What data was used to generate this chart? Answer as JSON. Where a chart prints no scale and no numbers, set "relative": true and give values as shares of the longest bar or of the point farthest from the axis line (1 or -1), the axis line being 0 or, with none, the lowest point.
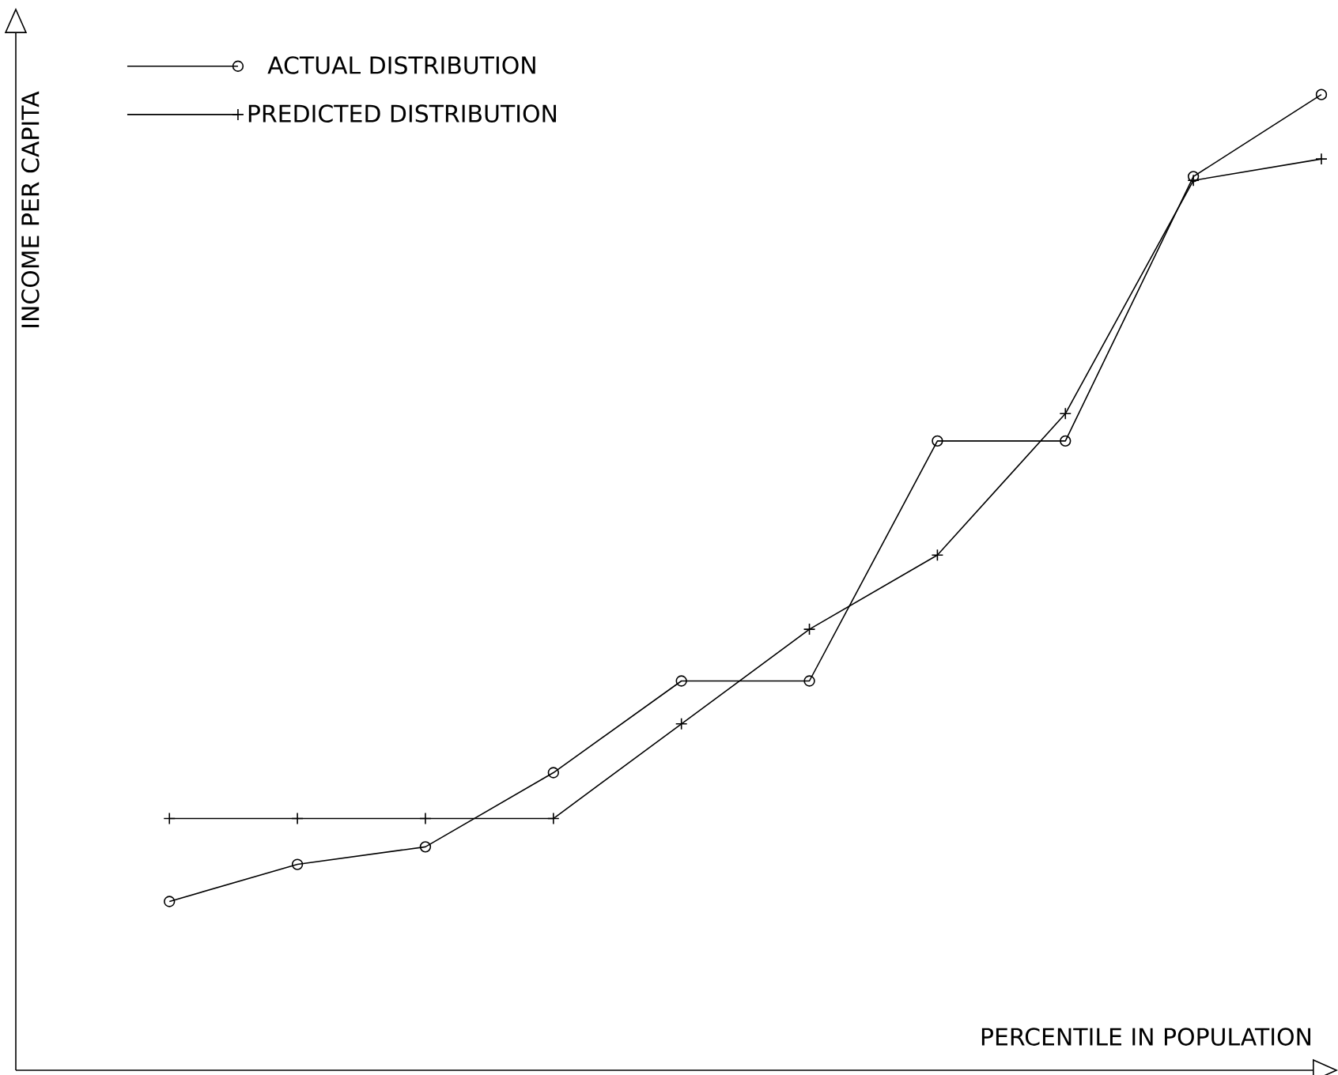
{
  "chart_data": {
    "type": "line",
    "relative": true,
    "xlabel": "PERCENTILE IN POPULATION",
    "ylabel": "INCOME PER CAPITA",
    "categories": [
      null,
      null,
      null,
      null,
      null,
      null,
      null,
      null,
      null,
      null
    ],
    "series": [
      {
        "name": "ACTUAL DISTRIBUTION",
        "color": "#000000",
        "marker": "circle",
        "values": [
          0.173,
          0.211,
          0.229,
          0.305,
          0.399,
          0.399,
          0.645,
          0.645,
          0.916,
          1.0
        ]
      },
      {
        "name": "PREDICTED DISTRIBUTION",
        "color": "#000000",
        "marker": "cross",
        "values": [
          0.258,
          0.258,
          0.258,
          0.258,
          0.355,
          0.452,
          0.528,
          0.673,
          0.912,
          0.934
        ]
      }
    ],
    "legend": "top left"
  }
}
